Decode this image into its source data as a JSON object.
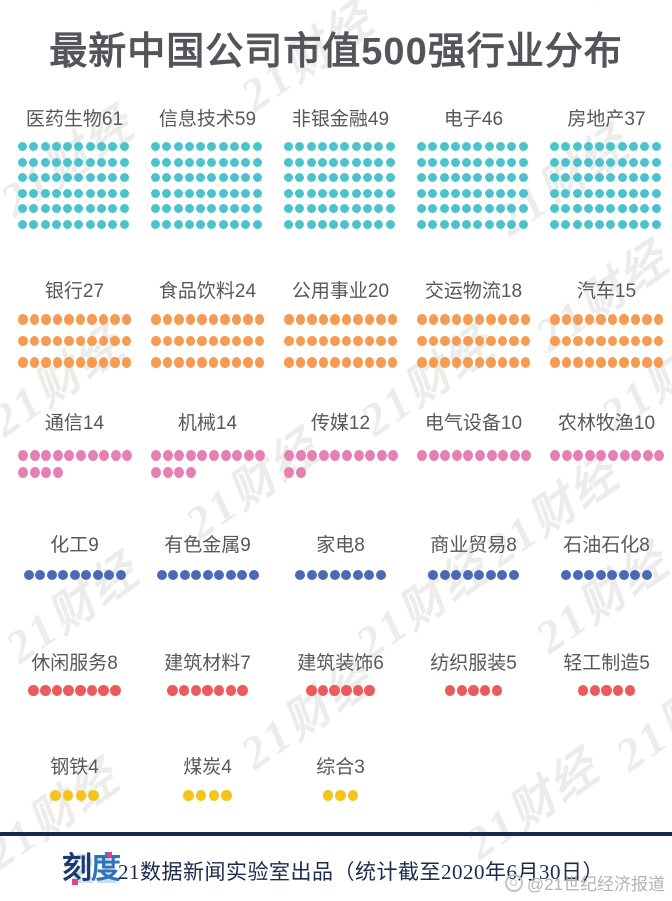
{
  "title": "最新中国公司市值500强行业分布",
  "watermark": {
    "text": "21财经"
  },
  "footer": {
    "logo_badge": "21",
    "logo_ke": "刻",
    "logo_du": "度",
    "credit_text": "21数据新闻实验室出品（统计截至2020年6月30日）",
    "weibo_handle": "@21世纪经济报道",
    "divider_color": "#18294d"
  },
  "chart_data": {
    "type": "pictogram",
    "title": "最新中国公司市值500强行业分布",
    "legend_position": "none",
    "grid": "5 columns, dots in rows of 10",
    "bands": [
      {
        "color": "#4ac3cd",
        "items": [
          {
            "label": "医药生物",
            "value": 61,
            "dots_shown": 60
          },
          {
            "label": "信息技术",
            "value": 59,
            "dots_shown": 60
          },
          {
            "label": "非银金融",
            "value": 49,
            "dots_shown": 60
          },
          {
            "label": "电子",
            "value": 46,
            "dots_shown": 60
          },
          {
            "label": "房地产",
            "value": 37,
            "dots_shown": 60
          }
        ]
      },
      {
        "color": "#f59b52",
        "items": [
          {
            "label": "银行",
            "value": 27,
            "dots_shown": 30
          },
          {
            "label": "食品饮料",
            "value": 24,
            "dots_shown": 30
          },
          {
            "label": "公用事业",
            "value": 20,
            "dots_shown": 30
          },
          {
            "label": "交运物流",
            "value": 18,
            "dots_shown": 30
          },
          {
            "label": "汽车",
            "value": 15,
            "dots_shown": 30
          }
        ]
      },
      {
        "color": "#e780b2",
        "items": [
          {
            "label": "通信",
            "value": 14,
            "dots_shown": 14
          },
          {
            "label": "机械",
            "value": 14,
            "dots_shown": 14
          },
          {
            "label": "传媒",
            "value": 12,
            "dots_shown": 12
          },
          {
            "label": "电气设备",
            "value": 10,
            "dots_shown": 10
          },
          {
            "label": "农林牧渔",
            "value": 10,
            "dots_shown": 10
          }
        ]
      },
      {
        "color": "#4c69b4",
        "items": [
          {
            "label": "化工",
            "value": 9,
            "dots_shown": 9
          },
          {
            "label": "有色金属",
            "value": 9,
            "dots_shown": 9
          },
          {
            "label": "家电",
            "value": 8,
            "dots_shown": 8
          },
          {
            "label": "商业贸易",
            "value": 8,
            "dots_shown": 8
          },
          {
            "label": "石油石化",
            "value": 8,
            "dots_shown": 8
          }
        ]
      },
      {
        "color": "#eb5b5e",
        "items": [
          {
            "label": "休闲服务",
            "value": 8,
            "dots_shown": 8
          },
          {
            "label": "建筑材料",
            "value": 7,
            "dots_shown": 7
          },
          {
            "label": "建筑装饰",
            "value": 6,
            "dots_shown": 6
          },
          {
            "label": "纺织服装",
            "value": 5,
            "dots_shown": 5
          },
          {
            "label": "轻工制造",
            "value": 5,
            "dots_shown": 5
          }
        ]
      },
      {
        "color": "#f4c41c",
        "items": [
          {
            "label": "钢铁",
            "value": 4,
            "dots_shown": 4
          },
          {
            "label": "煤炭",
            "value": 4,
            "dots_shown": 4
          },
          {
            "label": "综合",
            "value": 3,
            "dots_shown": 3
          }
        ]
      }
    ]
  }
}
